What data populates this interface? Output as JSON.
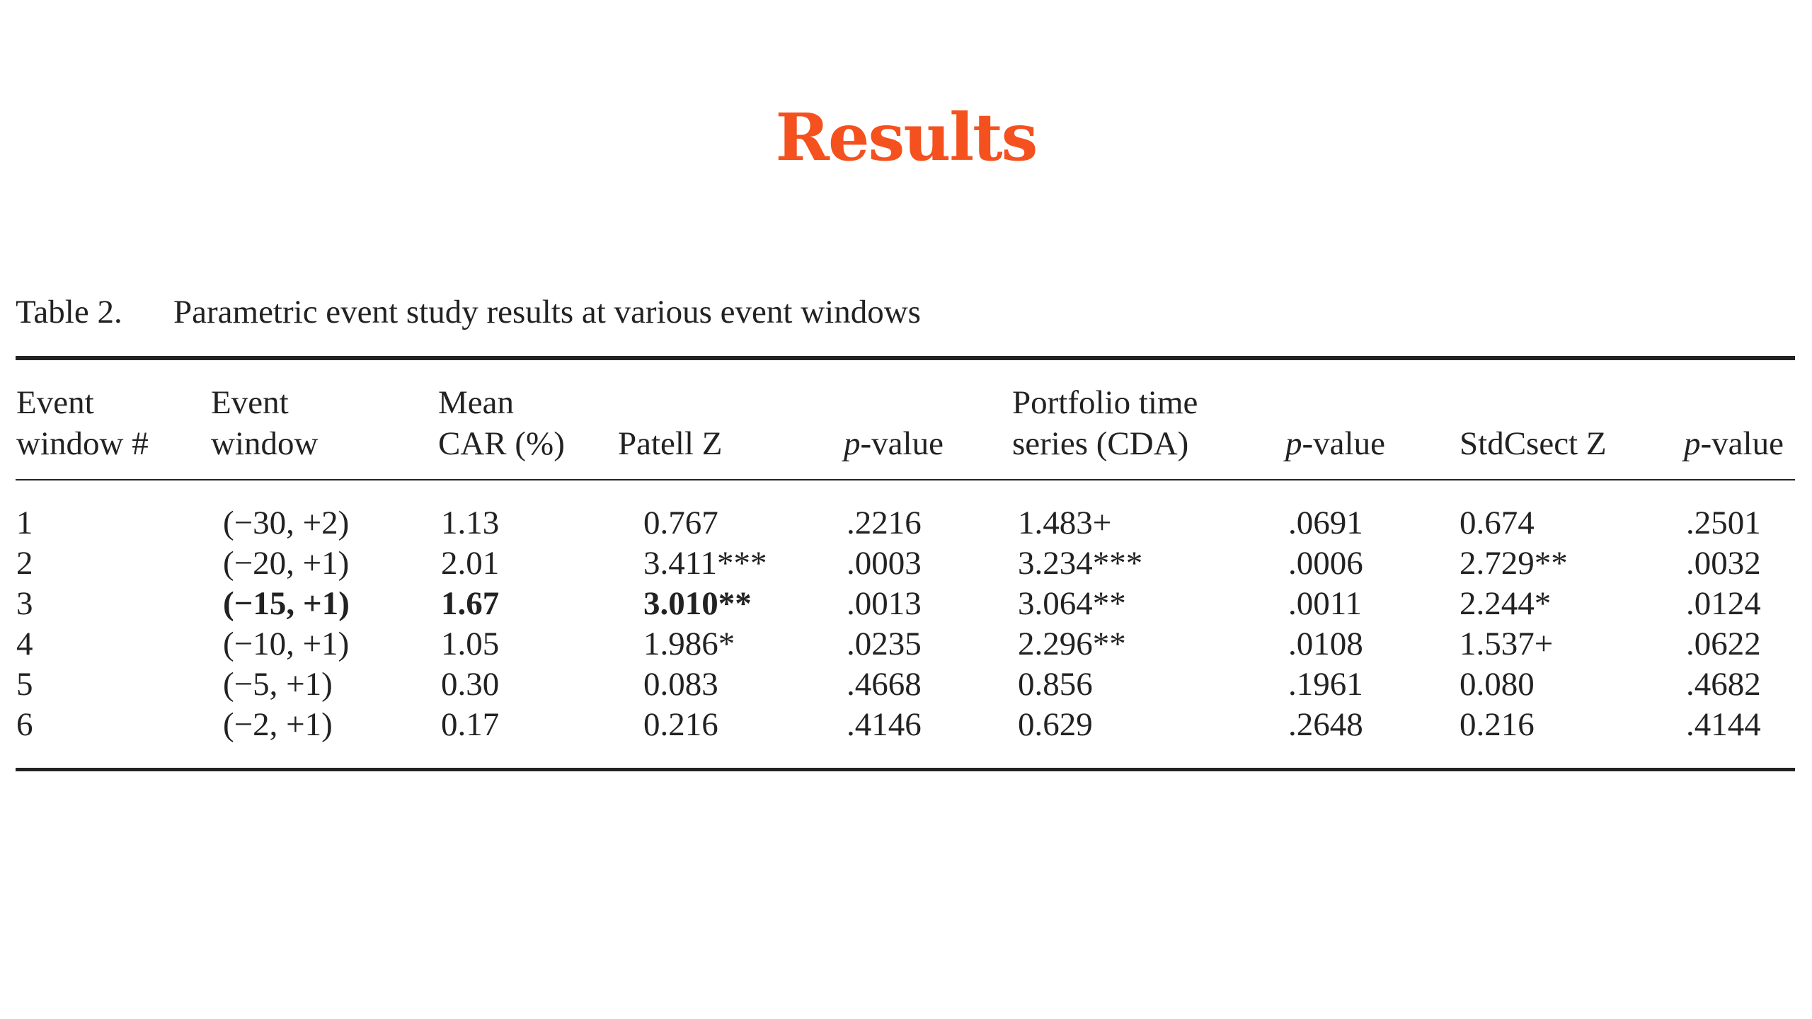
{
  "slide": {
    "title": "Results"
  },
  "table": {
    "label": "Table 2.",
    "caption": "Parametric event study results at various event windows",
    "headers": [
      [
        "Event",
        "window #"
      ],
      [
        "Event",
        "window"
      ],
      [
        "Mean",
        "CAR (%)"
      ],
      [
        "Patell Z"
      ],
      [
        "p-value"
      ],
      [
        "Portfolio time",
        "series (CDA)"
      ],
      [
        "p-value"
      ],
      [
        "StdCsect Z"
      ],
      [
        "p-value"
      ]
    ],
    "rows": [
      [
        "1",
        "(−30, +2)",
        "1.13",
        "0.767",
        ".2216",
        "1.483+",
        ".0691",
        "0.674",
        ".2501"
      ],
      [
        "2",
        "(−20, +1)",
        "2.01",
        "3.411***",
        ".0003",
        "3.234***",
        ".0006",
        "2.729**",
        ".0032"
      ],
      [
        "3",
        {
          "text": "(−15, +1)",
          "bold": true
        },
        {
          "text": "1.67",
          "bold": true
        },
        {
          "text": "3.010**",
          "bold": true
        },
        ".0013",
        "3.064**",
        ".0011",
        "2.244*",
        ".0124"
      ],
      [
        "4",
        "(−10, +1)",
        "1.05",
        "1.986*",
        ".0235",
        "2.296**",
        ".0108",
        "1.537+",
        ".0622"
      ],
      [
        "5",
        "(−5, +1)",
        "0.30",
        "0.083",
        ".4668",
        "0.856",
        ".1961",
        "0.080",
        ".4682"
      ],
      [
        "6",
        "(−2, +1)",
        "0.17",
        "0.216",
        ".4146",
        "0.629",
        ".2648",
        "0.216",
        ".4144"
      ]
    ]
  }
}
